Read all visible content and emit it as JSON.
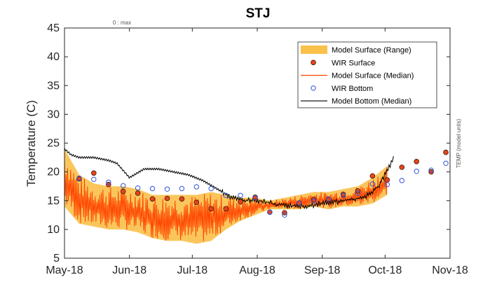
{
  "chart_data": {
    "type": "line",
    "title": "STJ",
    "ylabel": "Temperature (C)",
    "right_label": "TEMP (model units)",
    "top_note": "0 : max",
    "ylim": [
      5,
      45
    ],
    "y_ticks": [
      5,
      10,
      15,
      20,
      25,
      30,
      35,
      40,
      45
    ],
    "xlim": [
      "2018-05-01",
      "2018-11-01"
    ],
    "x_ticks": [
      {
        "date": "2018-05-01",
        "label": "May-18"
      },
      {
        "date": "2018-06-01",
        "label": "Jun-18"
      },
      {
        "date": "2018-07-01",
        "label": "Jul-18"
      },
      {
        "date": "2018-08-01",
        "label": "Aug-18"
      },
      {
        "date": "2018-09-01",
        "label": "Sep-18"
      },
      {
        "date": "2018-10-01",
        "label": "Oct-18"
      },
      {
        "date": "2018-11-01",
        "label": "Nov-18"
      }
    ],
    "grid": false,
    "legend_position": "top-right",
    "colors": {
      "range": "#F9C04A",
      "surface_median": "#FF4500",
      "wir_surface_fill": "#E8431A",
      "wir_surface_edge": "#3a1a0a",
      "wir_bottom": "#3355DD",
      "bottom_median": "#000000"
    },
    "series": [
      {
        "name": "Model Surface (Range)",
        "kind": "area",
        "dates": [
          "2018-05-01",
          "2018-05-08",
          "2018-05-15",
          "2018-05-22",
          "2018-05-29",
          "2018-06-05",
          "2018-06-12",
          "2018-06-19",
          "2018-06-26",
          "2018-07-03",
          "2018-07-10",
          "2018-07-17",
          "2018-07-24",
          "2018-07-31",
          "2018-08-07",
          "2018-08-14",
          "2018-08-21",
          "2018-08-28",
          "2018-09-04",
          "2018-09-11",
          "2018-09-18",
          "2018-09-25",
          "2018-10-02"
        ],
        "low": [
          14.0,
          11.0,
          10.5,
          10.0,
          10.0,
          9.5,
          8.5,
          8.0,
          8.0,
          7.5,
          8.0,
          10.0,
          11.5,
          12.5,
          13.5,
          13.5,
          13.5,
          14.0,
          13.5,
          14.0,
          14.0,
          14.5,
          16.0
        ],
        "high": [
          24.0,
          19.5,
          18.0,
          17.5,
          17.5,
          17.0,
          16.0,
          16.0,
          16.0,
          16.0,
          16.5,
          16.0,
          15.5,
          15.5,
          15.0,
          15.5,
          16.0,
          16.5,
          16.5,
          17.0,
          17.5,
          19.0,
          21.0
        ]
      },
      {
        "name": "WIR Surface",
        "kind": "points",
        "dates": [
          "2018-05-08",
          "2018-05-15",
          "2018-05-22",
          "2018-05-29",
          "2018-06-05",
          "2018-06-12",
          "2018-06-19",
          "2018-06-26",
          "2018-07-03",
          "2018-07-10",
          "2018-07-17",
          "2018-07-24",
          "2018-07-31",
          "2018-08-07",
          "2018-08-14",
          "2018-08-21",
          "2018-08-28",
          "2018-09-04",
          "2018-09-11",
          "2018-09-18",
          "2018-09-25",
          "2018-10-02",
          "2018-10-09",
          "2018-10-16",
          "2018-10-23",
          "2018-10-30"
        ],
        "values": [
          18.8,
          19.8,
          17.8,
          16.6,
          16.3,
          15.3,
          15.4,
          15.3,
          14.7,
          13.6,
          13.6,
          14.8,
          15.6,
          13.0,
          12.9,
          14.6,
          15.2,
          15.2,
          16.1,
          16.7,
          19.3,
          18.6,
          20.8,
          21.8,
          20.0,
          23.4
        ]
      },
      {
        "name": "Model Surface (Median)",
        "kind": "line",
        "dates": [
          "2018-05-01",
          "2018-05-08",
          "2018-05-15",
          "2018-05-22",
          "2018-05-29",
          "2018-06-05",
          "2018-06-12",
          "2018-06-19",
          "2018-06-26",
          "2018-07-03",
          "2018-07-10",
          "2018-07-17",
          "2018-07-24",
          "2018-07-31",
          "2018-08-07",
          "2018-08-14",
          "2018-08-21",
          "2018-08-28",
          "2018-09-04",
          "2018-09-11",
          "2018-09-18",
          "2018-09-25",
          "2018-10-02"
        ],
        "values": [
          22.0,
          16.0,
          14.0,
          13.5,
          13.5,
          13.0,
          12.0,
          12.0,
          12.0,
          11.5,
          12.0,
          13.0,
          13.5,
          14.0,
          14.2,
          14.3,
          14.5,
          15.0,
          14.8,
          15.3,
          15.5,
          16.5,
          18.5
        ]
      },
      {
        "name": "WIR Bottom",
        "kind": "points",
        "dates": [
          "2018-05-08",
          "2018-05-15",
          "2018-05-22",
          "2018-05-29",
          "2018-06-05",
          "2018-06-12",
          "2018-06-19",
          "2018-06-26",
          "2018-07-03",
          "2018-07-10",
          "2018-07-17",
          "2018-07-24",
          "2018-07-31",
          "2018-08-07",
          "2018-08-14",
          "2018-08-21",
          "2018-08-28",
          "2018-09-04",
          "2018-09-11",
          "2018-09-18",
          "2018-09-25",
          "2018-10-02",
          "2018-10-09",
          "2018-10-16",
          "2018-10-23",
          "2018-10-30"
        ],
        "values": [
          18.9,
          18.7,
          18.2,
          17.6,
          17.2,
          17.1,
          17.0,
          17.1,
          17.4,
          17.1,
          15.9,
          15.9,
          15.5,
          13.0,
          12.5,
          14.6,
          14.9,
          15.3,
          15.9,
          16.3,
          17.9,
          17.8,
          18.5,
          20.1,
          20.3,
          21.5
        ]
      },
      {
        "name": "Model Bottom (Median)",
        "kind": "line",
        "dates": [
          "2018-05-01",
          "2018-05-04",
          "2018-05-08",
          "2018-05-15",
          "2018-05-22",
          "2018-05-26",
          "2018-06-01",
          "2018-06-08",
          "2018-06-15",
          "2018-06-22",
          "2018-06-29",
          "2018-07-06",
          "2018-07-13",
          "2018-07-20",
          "2018-07-27",
          "2018-08-03",
          "2018-08-10",
          "2018-08-17",
          "2018-08-24",
          "2018-08-31",
          "2018-09-07",
          "2018-09-14",
          "2018-09-21",
          "2018-09-28",
          "2018-10-05"
        ],
        "values": [
          24.0,
          23.0,
          22.5,
          22.5,
          22.0,
          21.5,
          19.0,
          20.5,
          20.5,
          20.0,
          19.5,
          18.5,
          17.0,
          15.5,
          15.0,
          15.0,
          14.3,
          14.2,
          14.0,
          14.5,
          14.8,
          15.2,
          15.5,
          17.5,
          22.3
        ]
      }
    ]
  }
}
